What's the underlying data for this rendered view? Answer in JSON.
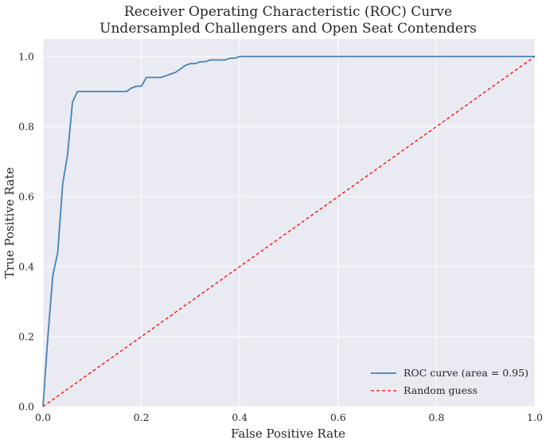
{
  "chart_data": {
    "type": "line",
    "title": "Receiver Operating Characteristic (ROC) Curve",
    "subtitle": "Undersampled Challengers and Open Seat Contenders",
    "xlabel": "False Positive Rate",
    "ylabel": "True Positive Rate",
    "xlim": [
      0.0,
      1.0
    ],
    "ylim": [
      0.0,
      1.05
    ],
    "xticks": [
      "0.0",
      "0.2",
      "0.4",
      "0.6",
      "0.8",
      "1.0"
    ],
    "yticks": [
      "0.0",
      "0.2",
      "0.4",
      "0.6",
      "0.8",
      "1.0"
    ],
    "grid": true,
    "legend_position": "lower-right",
    "colors": {
      "background": "#eaeaf2",
      "grid": "#ffffff",
      "roc": "#4682b4",
      "random": "#ff0000"
    },
    "series": [
      {
        "name": "ROC curve (area = 0.95)",
        "style": "solid",
        "x": [
          0.0,
          0.01,
          0.02,
          0.03,
          0.04,
          0.05,
          0.06,
          0.07,
          0.08,
          0.09,
          0.1,
          0.12,
          0.14,
          0.16,
          0.17,
          0.18,
          0.19,
          0.2,
          0.21,
          0.22,
          0.23,
          0.24,
          0.25,
          0.26,
          0.27,
          0.28,
          0.29,
          0.3,
          0.31,
          0.32,
          0.33,
          0.34,
          0.35,
          0.36,
          0.37,
          0.38,
          0.39,
          0.4,
          0.41,
          0.5,
          0.6,
          0.7,
          0.8,
          0.9,
          1.0
        ],
        "y": [
          0.0,
          0.2,
          0.375,
          0.44,
          0.635,
          0.72,
          0.87,
          0.9,
          0.9,
          0.9,
          0.9,
          0.9,
          0.9,
          0.9,
          0.9,
          0.91,
          0.915,
          0.915,
          0.94,
          0.94,
          0.94,
          0.94,
          0.945,
          0.95,
          0.955,
          0.965,
          0.975,
          0.98,
          0.98,
          0.985,
          0.985,
          0.99,
          0.99,
          0.99,
          0.99,
          0.995,
          0.995,
          1.0,
          1.0,
          1.0,
          1.0,
          1.0,
          1.0,
          1.0,
          1.0
        ]
      },
      {
        "name": "Random guess",
        "style": "dashed",
        "x": [
          0.0,
          1.0
        ],
        "y": [
          0.0,
          1.0
        ]
      }
    ]
  }
}
